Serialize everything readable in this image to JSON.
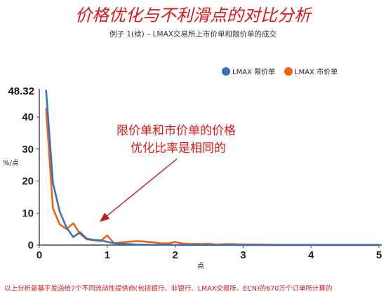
{
  "title": "价格优化与不利滑点的对比分析",
  "subtitle": "例子 1(续) – LMAX交易所上市价单和限价单的成交",
  "footnote": "以上分析是基于发送给7个不同流动性提供商(包括银行、非银行、LMAX交易所、ECN)的670万个订单所计算的",
  "annotation": {
    "line1": "限价单和市价单的价格",
    "line2": "优化比率是相同的"
  },
  "colors": {
    "limit": "#3a73bd",
    "market": "#f0640f",
    "annotation": "#e0161b"
  },
  "chart_data": {
    "type": "line",
    "xlabel": "点",
    "ylabel": "%/点",
    "xlim": [
      0,
      5
    ],
    "ylim": [
      0,
      48.32
    ],
    "x_ticks": [
      "0",
      "1",
      "2",
      "3",
      "4",
      "5"
    ],
    "y_ticks": [
      "0",
      "10",
      "20",
      "30",
      "40"
    ],
    "y_max_label": "48.32",
    "legend_position": "top-right",
    "grid": false,
    "series": [
      {
        "name": "LMAX 限价单",
        "color": "#3a73bd",
        "x": [
          0.1,
          0.2,
          0.3,
          0.4,
          0.5,
          0.6,
          0.7,
          0.8,
          0.9,
          1.0,
          1.1,
          1.2,
          1.3,
          1.4,
          1.5,
          1.6,
          1.7,
          1.8,
          1.9,
          2.0,
          2.2,
          2.4,
          2.6,
          2.8,
          3.0,
          3.5,
          4.0,
          4.5,
          5.0
        ],
        "values": [
          48.3,
          19.5,
          10.5,
          5.5,
          2.5,
          4.0,
          2.0,
          1.6,
          1.5,
          1.0,
          0.6,
          0.4,
          0.3,
          0.2,
          0.15,
          0.1,
          0.1,
          0.1,
          0.1,
          0.05,
          0.05,
          0.05,
          0.05,
          0.05,
          0.02,
          0.02,
          0.02,
          0.02,
          0.02
        ]
      },
      {
        "name": "LMAX 市价单",
        "color": "#f0640f",
        "x": [
          0.1,
          0.2,
          0.3,
          0.4,
          0.5,
          0.6,
          0.7,
          0.8,
          0.9,
          1.0,
          1.1,
          1.2,
          1.3,
          1.4,
          1.5,
          1.6,
          1.7,
          1.8,
          1.9,
          2.0,
          2.1,
          2.2,
          2.3,
          2.4,
          2.5,
          2.6,
          2.8,
          3.0,
          3.2,
          3.5,
          4.0,
          4.5,
          5.0
        ],
        "values": [
          42.5,
          11.5,
          6.5,
          5.0,
          6.8,
          3.5,
          1.8,
          1.5,
          1.3,
          3.0,
          0.6,
          0.8,
          1.0,
          1.2,
          1.2,
          1.0,
          0.8,
          0.5,
          0.5,
          1.0,
          0.5,
          0.3,
          0.4,
          0.3,
          0.4,
          0.2,
          0.3,
          0.2,
          0.2,
          0.1,
          0.1,
          0.1,
          0.1
        ]
      }
    ]
  }
}
